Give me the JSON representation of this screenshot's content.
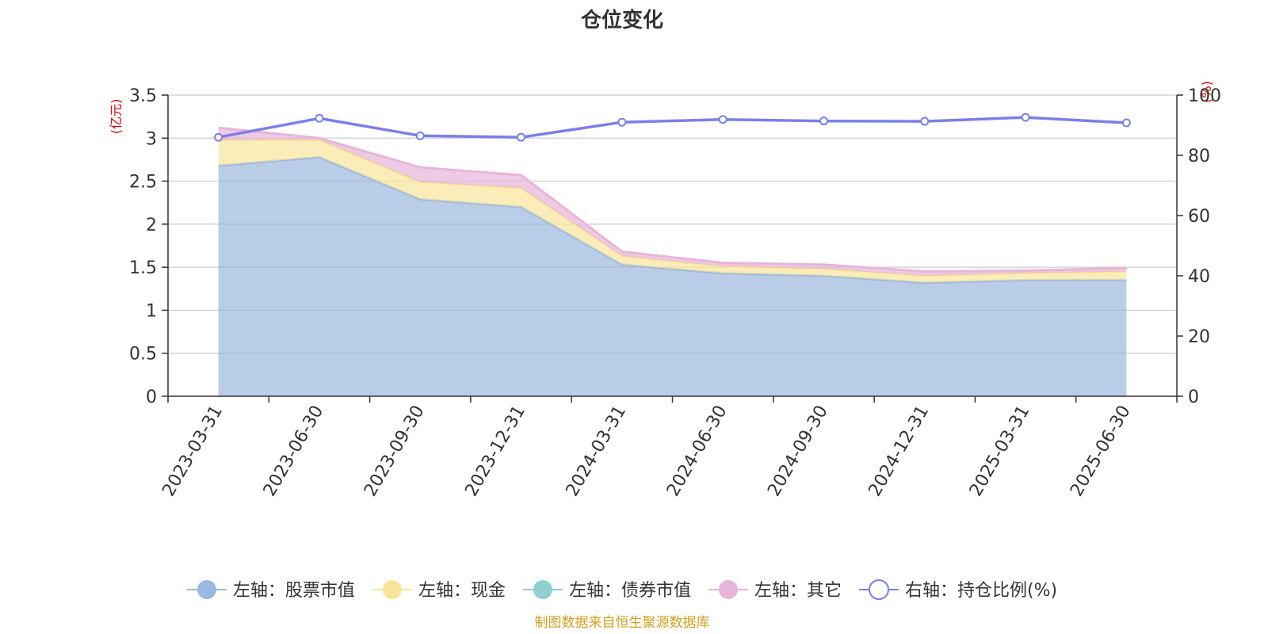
{
  "chart_data": {
    "type": "area",
    "title": "仓位变化",
    "left_axis_label": "(亿元)",
    "right_axis_label": "(%)",
    "left_ylim": [
      0,
      3.5
    ],
    "left_ticks": [
      "0",
      "0.5",
      "1",
      "1.5",
      "2",
      "2.5",
      "3",
      "3.5"
    ],
    "right_ylim": [
      0,
      100
    ],
    "right_ticks": [
      "0",
      "20",
      "40",
      "60",
      "80",
      "100"
    ],
    "categories": [
      "2023-03-31",
      "2023-06-30",
      "2023-09-30",
      "2023-12-31",
      "2024-03-31",
      "2024-06-30",
      "2024-09-30",
      "2024-12-31",
      "2025-03-31",
      "2025-06-30"
    ],
    "series": [
      {
        "name": "左轴：股票市值",
        "axis": "left",
        "stack": true,
        "color": "#9bb8e0",
        "values": [
          2.68,
          2.78,
          2.29,
          2.2,
          1.53,
          1.43,
          1.4,
          1.32,
          1.35,
          1.35
        ]
      },
      {
        "name": "左轴：现金",
        "axis": "left",
        "stack": true,
        "color": "#f8e59c",
        "values": [
          0.3,
          0.2,
          0.2,
          0.22,
          0.1,
          0.08,
          0.08,
          0.08,
          0.08,
          0.1
        ]
      },
      {
        "name": "左轴：债券市值",
        "axis": "left",
        "stack": true,
        "color": "#8fd0d0",
        "values": [
          0,
          0,
          0,
          0,
          0,
          0,
          0,
          0,
          0,
          0
        ]
      },
      {
        "name": "左轴：其它",
        "axis": "left",
        "stack": true,
        "color": "#e8b4da",
        "values": [
          0.14,
          0.02,
          0.17,
          0.15,
          0.05,
          0.04,
          0.05,
          0.05,
          0.03,
          0.04
        ]
      },
      {
        "name": "右轴：持仓比例(%)",
        "axis": "right",
        "type": "line",
        "color": "#7b7fee",
        "values": [
          86,
          92.3,
          86.5,
          86,
          91,
          91.9,
          91.4,
          91.3,
          92.6,
          90.8
        ]
      }
    ],
    "grid": true,
    "legend_position": "bottom",
    "source": "制图数据来自恒生聚源数据库"
  }
}
